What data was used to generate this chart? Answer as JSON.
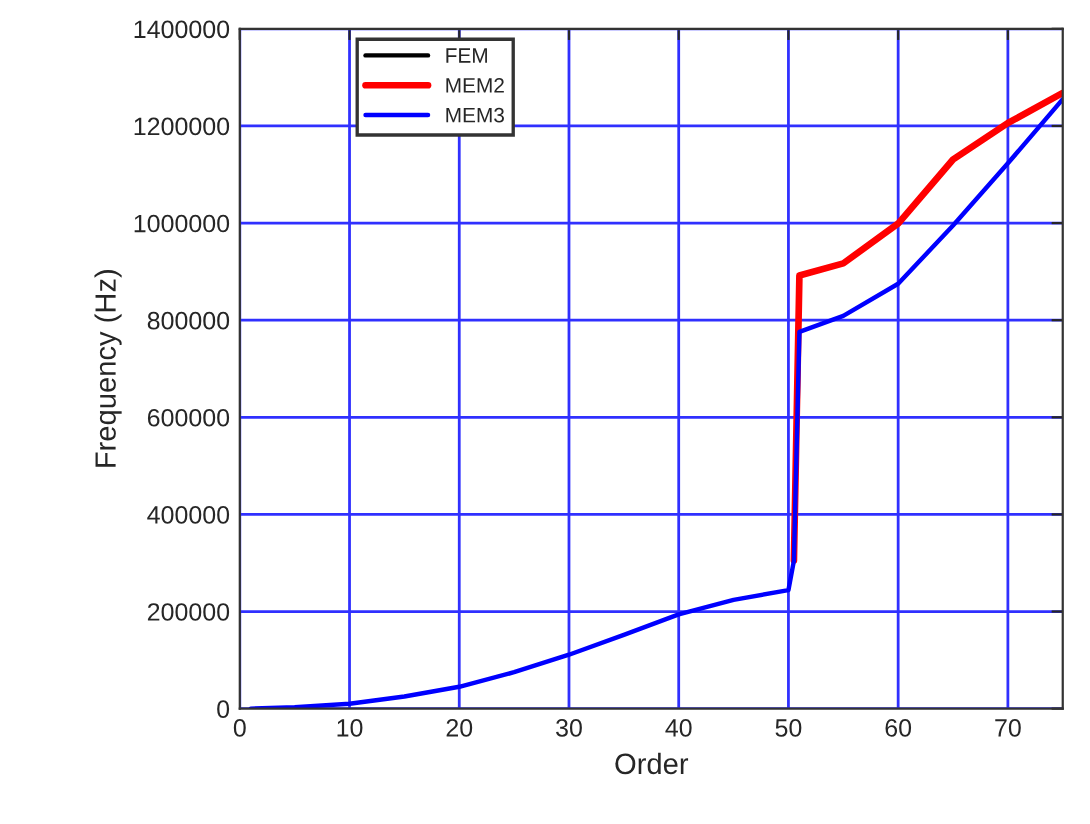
{
  "chart_data": {
    "type": "line",
    "xlabel": "Order",
    "ylabel": "Frequency (Hz)",
    "xlim": [
      0,
      75
    ],
    "xticks": [
      0,
      10,
      20,
      30,
      40,
      50,
      60,
      70
    ],
    "ylim": [
      0,
      1400000
    ],
    "yticks": [
      0,
      200000,
      400000,
      600000,
      800000,
      1000000,
      1200000,
      1400000
    ],
    "grid": true,
    "legend": "top left",
    "series": [
      {
        "name": "FEM",
        "color": "#000000"
      },
      {
        "name": "MEM2",
        "color": "#ff0000",
        "x": [
          50.5,
          51,
          55,
          60,
          65,
          70,
          75
        ],
        "values": [
          305000,
          892000,
          917000,
          999000,
          1131000,
          1206000,
          1268000
        ]
      },
      {
        "name": "MEM3",
        "color": "#0000ff",
        "x": [
          1,
          5,
          10,
          15,
          20,
          25,
          30,
          35,
          40,
          45,
          50,
          50.5,
          51,
          55,
          60,
          65,
          70,
          75
        ],
        "values": [
          0,
          3000,
          10000,
          25000,
          45000,
          75000,
          111000,
          152000,
          194000,
          224000,
          244000,
          305000,
          776000,
          809000,
          875000,
          995000,
          1123000,
          1255000
        ]
      }
    ]
  }
}
